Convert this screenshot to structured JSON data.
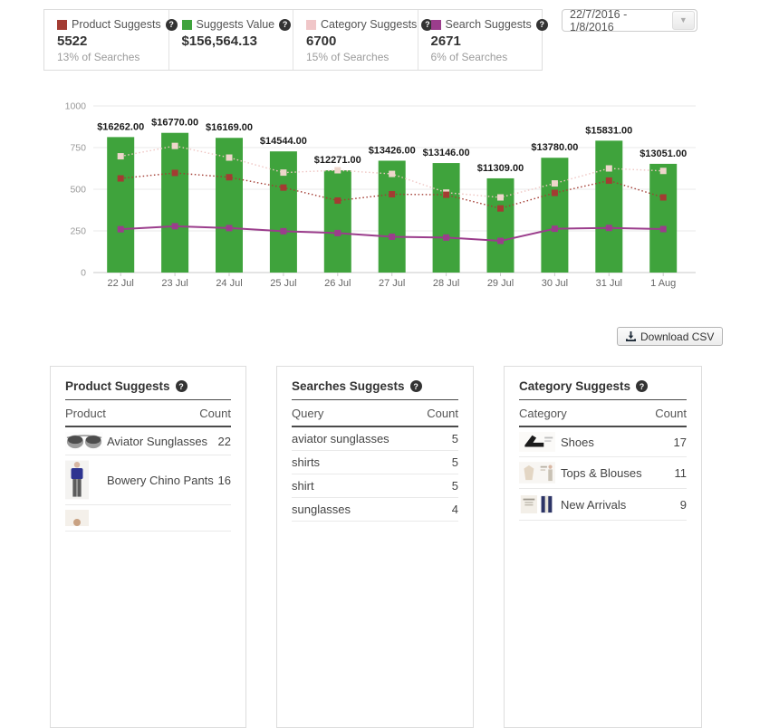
{
  "stats": {
    "cards": [
      {
        "label": "Product Suggests",
        "value": "5522",
        "sub": "13% of Searches",
        "color": "#a33c33"
      },
      {
        "label": "Suggests Value",
        "value": "$156,564.13",
        "sub": "",
        "color": "#3fa33c"
      },
      {
        "label": "Category Suggests",
        "value": "6700",
        "sub": "15% of Searches",
        "color": "#f0c6c8"
      },
      {
        "label": "Search Suggests",
        "value": "2671",
        "sub": "6% of Searches",
        "color": "#9b3d8c"
      }
    ]
  },
  "date_picker": {
    "value": "22/7/2016 - 1/8/2016"
  },
  "download": {
    "label": "Download CSV"
  },
  "chart_data": {
    "type": "combo (bar + lines)",
    "categories": [
      "22 Jul",
      "23 Jul",
      "24 Jul",
      "25 Jul",
      "26 Jul",
      "27 Jul",
      "28 Jul",
      "29 Jul",
      "30 Jul",
      "31 Jul",
      "1 Aug"
    ],
    "ylim": [
      0,
      1000
    ],
    "yticks": [
      0,
      250,
      500,
      750,
      1000
    ],
    "grid": true,
    "value_axis_divisor": 20,
    "series": [
      {
        "name": "Suggests Value",
        "type": "bar",
        "color": "#3fa33c",
        "values": [
          16262,
          16770,
          16169,
          14544,
          12271,
          13426,
          13146,
          11309,
          13780,
          15831,
          13051
        ],
        "display_labels": [
          "$16262.00",
          "$16770.00",
          "$16169.00",
          "$14544.00",
          "$12271.00",
          "$13426.00",
          "$13146.00",
          "$11309.00",
          "$13780.00",
          "$15831.00",
          "$13051.00"
        ]
      },
      {
        "name": "Category Suggests",
        "type": "line",
        "style": "dotted",
        "color": "#efc6c3",
        "marker_color": "#eed6cb",
        "values": [
          698,
          760,
          690,
          600,
          614,
          592,
          480,
          451,
          535,
          625,
          610
        ]
      },
      {
        "name": "Product Suggests",
        "type": "line",
        "style": "dotted",
        "color": "#a33c33",
        "marker_color": "#a33c32",
        "values": [
          565,
          598,
          572,
          510,
          432,
          470,
          467,
          385,
          478,
          552,
          451
        ]
      },
      {
        "name": "Search Suggests",
        "type": "line",
        "style": "solid",
        "color": "#9b3d8c",
        "marker_color": "#9b3d8c",
        "values": [
          260,
          278,
          267,
          248,
          237,
          215,
          210,
          190,
          263,
          268,
          261
        ]
      }
    ]
  },
  "tables": [
    {
      "title": "Product Suggests",
      "columns": [
        "Product",
        "Count"
      ],
      "rows": [
        {
          "img": "aviator-sunglasses",
          "label": "Aviator Sunglasses",
          "count": "22"
        },
        {
          "img": "bowery-chino-pants",
          "label": "Bowery Chino Pants",
          "count": "16"
        },
        {
          "img": "partial-product",
          "label": "",
          "count": ""
        }
      ]
    },
    {
      "title": "Searches Suggests",
      "columns": [
        "Query",
        "Count"
      ],
      "rows": [
        {
          "label": "aviator sunglasses",
          "count": "5"
        },
        {
          "label": "shirts",
          "count": "5"
        },
        {
          "label": "shirt",
          "count": "5"
        },
        {
          "label": "sunglasses",
          "count": "4"
        }
      ]
    },
    {
      "title": "Category Suggests",
      "columns": [
        "Category",
        "Count"
      ],
      "rows": [
        {
          "img": "shoes",
          "label": "Shoes",
          "count": "17"
        },
        {
          "img": "tops-blouses",
          "label": "Tops & Blouses",
          "count": "11"
        },
        {
          "img": "new-arrivals",
          "label": "New Arrivals",
          "count": "9"
        }
      ]
    }
  ]
}
